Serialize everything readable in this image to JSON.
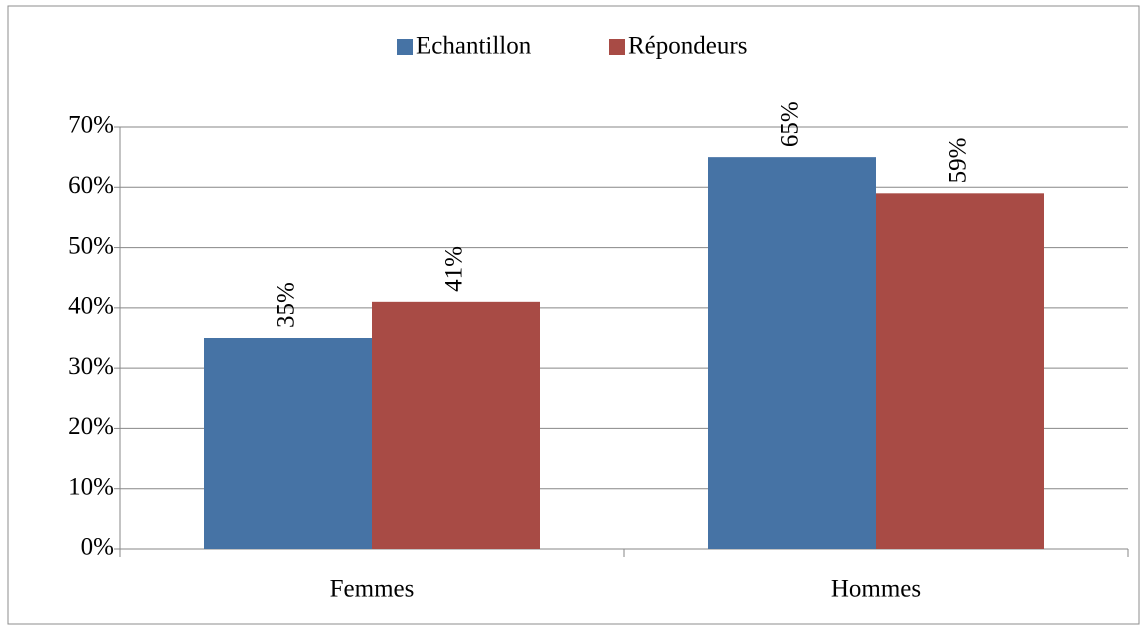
{
  "chart_data": {
    "type": "bar",
    "categories": [
      "Femmes",
      "Hommes"
    ],
    "series": [
      {
        "name": "Echantillon",
        "color": "#4673a5",
        "values": [
          35,
          65
        ],
        "value_labels": [
          "35%",
          "65%"
        ]
      },
      {
        "name": "Répondeurs",
        "color": "#a84b45",
        "values": [
          41,
          59
        ],
        "value_labels": [
          "41%",
          "59%"
        ]
      }
    ],
    "ylim": [
      0,
      70
    ],
    "yticks": [
      {
        "value": 0,
        "label": "0%"
      },
      {
        "value": 10,
        "label": "10%"
      },
      {
        "value": 20,
        "label": "20%"
      },
      {
        "value": 30,
        "label": "30%"
      },
      {
        "value": 40,
        "label": "40%"
      },
      {
        "value": 50,
        "label": "50%"
      },
      {
        "value": 60,
        "label": "60%"
      },
      {
        "value": 70,
        "label": "70%"
      }
    ],
    "grid": true,
    "legend": "top"
  }
}
